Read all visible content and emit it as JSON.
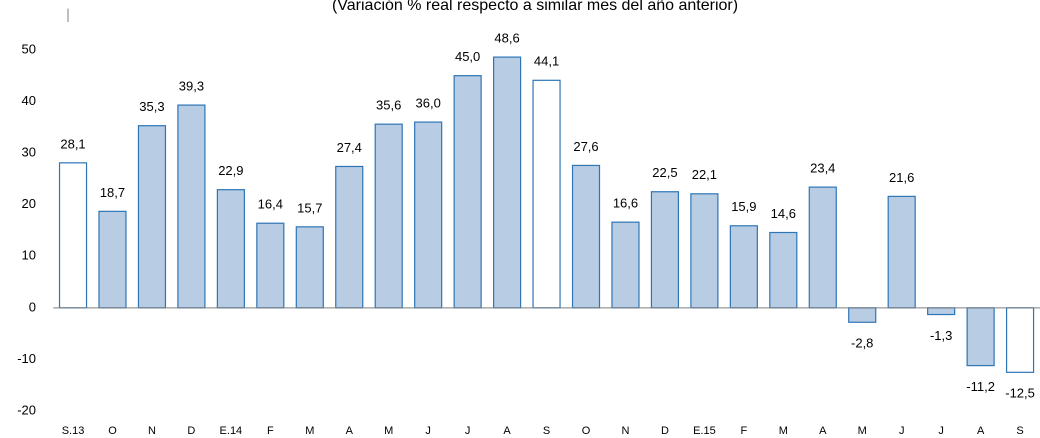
{
  "chart_data": {
    "type": "bar",
    "subtitle": "(Variación % real respecto a similar mes del año anterior)",
    "categories": [
      "S.13",
      "O",
      "N",
      "D",
      "E.14",
      "F",
      "M",
      "A",
      "M",
      "J",
      "J",
      "A",
      "S",
      "O",
      "N",
      "D",
      "E.15",
      "F",
      "M",
      "A",
      "M",
      "J",
      "J",
      "A",
      "S"
    ],
    "values": [
      28.1,
      18.7,
      35.3,
      39.3,
      22.9,
      16.4,
      15.7,
      27.4,
      35.6,
      36.0,
      45.0,
      48.6,
      44.1,
      27.6,
      16.6,
      22.5,
      22.1,
      15.9,
      14.6,
      23.4,
      -2.8,
      21.6,
      -1.3,
      -11.2,
      -12.5
    ],
    "value_labels": [
      "28,1",
      "18,7",
      "35,3",
      "39,3",
      "22,9",
      "16,4",
      "15,7",
      "27,4",
      "35,6",
      "36,0",
      "45,0",
      "48,6",
      "44,1",
      "27,6",
      "16,6",
      "22,5",
      "22,1",
      "15,9",
      "14,6",
      "23,4",
      "-2,8",
      "21,6",
      "-1,3",
      "-11,2",
      "-12,5"
    ],
    "colors": [
      "#ffffff",
      "#b8cce4",
      "#b8cce4",
      "#b8cce4",
      "#b8cce4",
      "#b8cce4",
      "#b8cce4",
      "#b8cce4",
      "#b8cce4",
      "#b8cce4",
      "#b8cce4",
      "#b8cce4",
      "#ffffff",
      "#b8cce4",
      "#b8cce4",
      "#b8cce4",
      "#b8cce4",
      "#b8cce4",
      "#b8cce4",
      "#b8cce4",
      "#b8cce4",
      "#b8cce4",
      "#b8cce4",
      "#b8cce4",
      "#ffffff"
    ],
    "edge_color": "#2e75b6",
    "ylim": [
      -20,
      58
    ],
    "yticks": [
      -20,
      -10,
      0,
      10,
      20,
      30,
      40,
      50
    ],
    "grid": false
  }
}
